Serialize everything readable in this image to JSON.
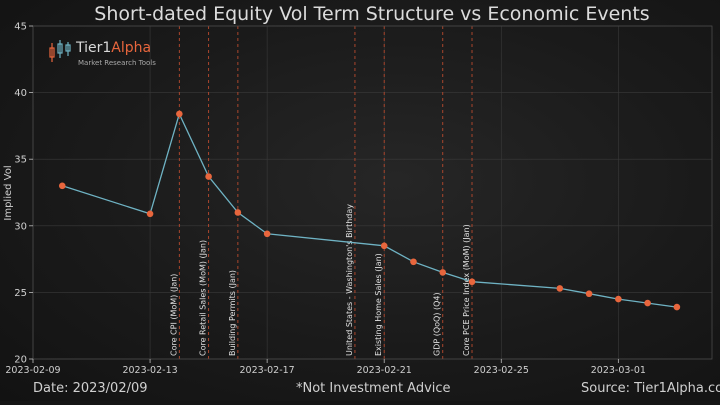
{
  "chart_data": {
    "type": "line",
    "title": "Short-dated Equity Vol Term Structure vs Economic Events",
    "xlabel": "",
    "ylabel": "Implied Vol",
    "ylim": [
      20,
      45
    ],
    "yticks": [
      20,
      25,
      30,
      35,
      40,
      45
    ],
    "xlim": [
      "2023-02-09",
      "2023-03-04"
    ],
    "xticks": [
      "2023-02-09",
      "2023-02-13",
      "2023-02-17",
      "2023-02-21",
      "2023-02-25",
      "2023-03-01"
    ],
    "series": [
      {
        "name": "",
        "x": [
          "2023-02-10",
          "2023-02-13",
          "2023-02-14",
          "2023-02-15",
          "2023-02-16",
          "2023-02-17",
          "2023-02-21",
          "2023-02-22",
          "2023-02-23",
          "2023-02-24",
          "2023-02-27",
          "2023-02-28",
          "2023-03-01",
          "2023-03-02",
          "2023-03-03"
        ],
        "values": [
          33.0,
          30.9,
          38.4,
          33.7,
          31.0,
          29.4,
          28.5,
          27.3,
          26.5,
          25.8,
          25.3,
          24.9,
          24.5,
          24.2,
          23.9
        ]
      }
    ],
    "events": [
      {
        "date": "2023-02-14",
        "label": "Core CPI (MoM)  (Jan)"
      },
      {
        "date": "2023-02-15",
        "label": "Core Retail Sales (MoM)  (Jan)"
      },
      {
        "date": "2023-02-16",
        "label": "Building Permits  (Jan)"
      },
      {
        "date": "2023-02-20",
        "label": "United States - Washington's Birthday"
      },
      {
        "date": "2023-02-21",
        "label": "Existing Home Sales  (Jan)"
      },
      {
        "date": "2023-02-23",
        "label": "GDP (QoQ)  (Q4)"
      },
      {
        "date": "2023-02-24",
        "label": "Core PCE Price Index (MoM)  (Jan)"
      }
    ],
    "grid": true,
    "colors": {
      "line": "#6fb3c4",
      "marker": "#e8663d",
      "event_line": "#b84a2e",
      "grid": "#3a3a3a",
      "axis": "#bdbdbd"
    }
  },
  "logo": {
    "brand": "Tier1",
    "brand_accent": "Alpha",
    "tagline": "Market Research Tools"
  },
  "footer": {
    "date_text": "Date: 2023/02/09",
    "disclaimer": "*Not Investment Advice",
    "source": "Source: Tier1Alpha.com"
  }
}
